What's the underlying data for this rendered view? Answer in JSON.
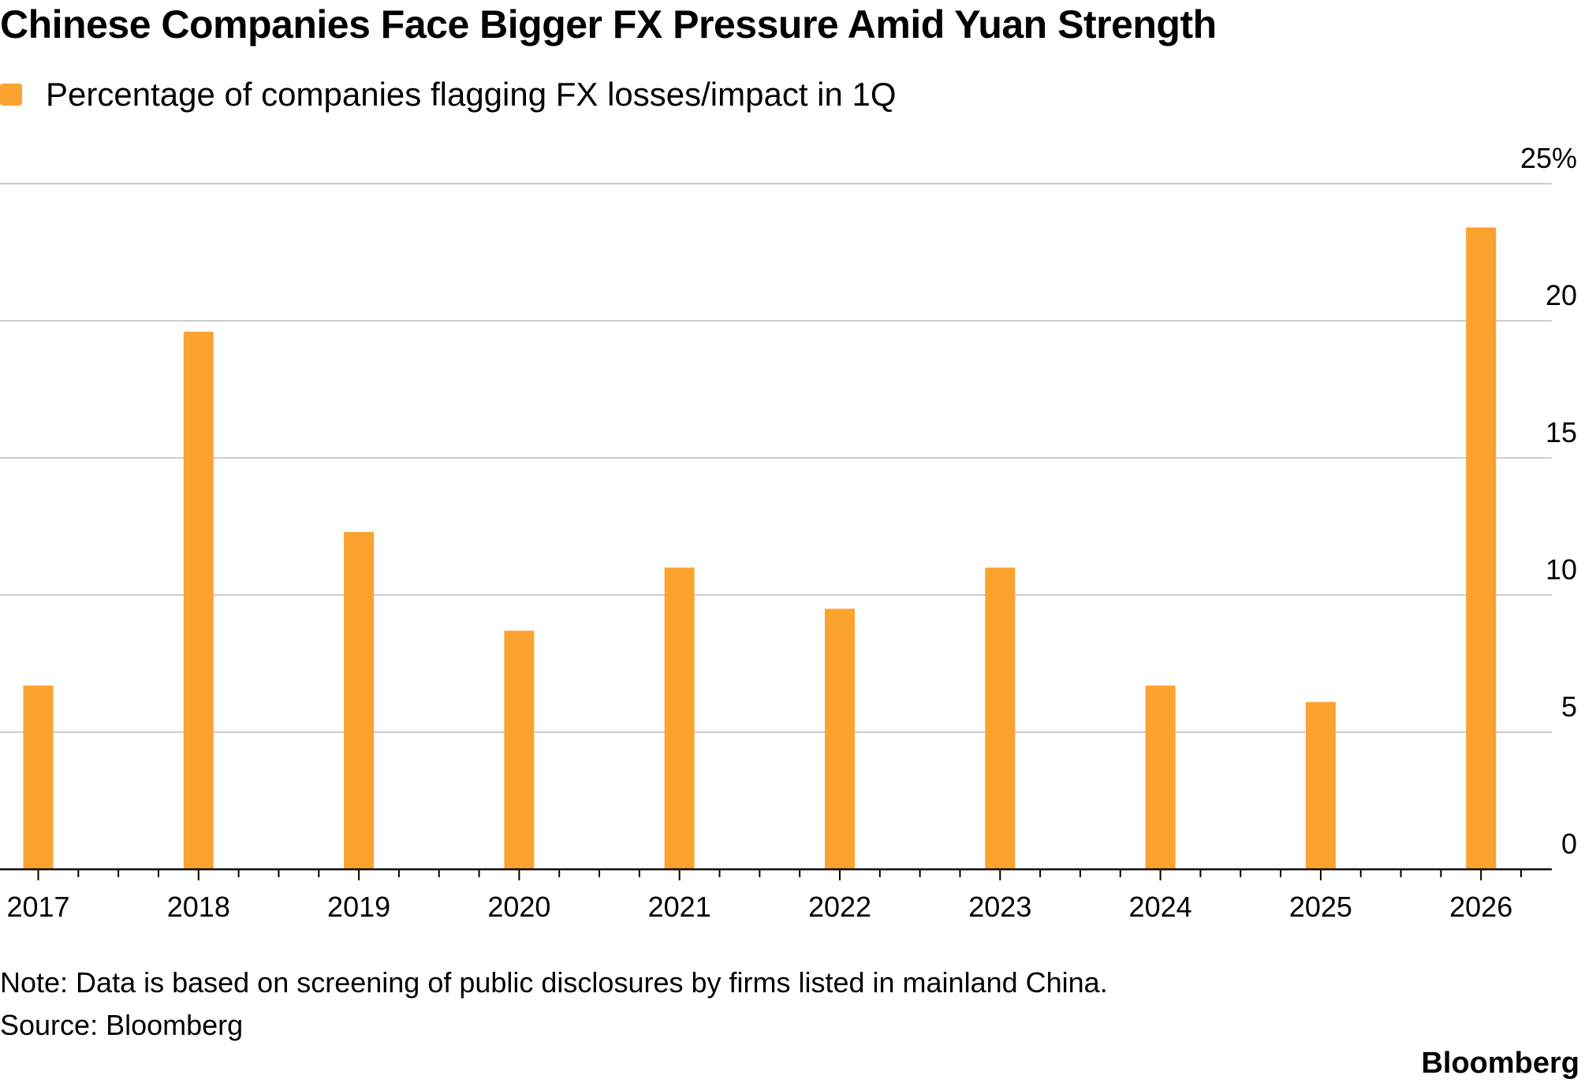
{
  "chart_data": {
    "type": "bar",
    "title": "Chinese Companies Face Bigger FX Pressure Amid Yuan Strength",
    "series": [
      {
        "name": "Percentage of companies flagging FX losses/impact in 1Q",
        "color": "#fca22f",
        "values": [
          6.7,
          19.6,
          12.3,
          8.7,
          11.0,
          9.5,
          11.0,
          6.7,
          6.1,
          23.4
        ]
      }
    ],
    "categories": [
      "2017",
      "2018",
      "2019",
      "2020",
      "2021",
      "2022",
      "2023",
      "2024",
      "2025",
      "2026"
    ],
    "ylim": [
      0,
      25
    ],
    "yticks": [
      0,
      5,
      10,
      15,
      20,
      25
    ],
    "ytick_labels": [
      "0",
      "5",
      "10",
      "15",
      "20",
      "25%"
    ],
    "y_axis_side": "right",
    "grid": true,
    "legend_position": "top-left"
  },
  "footer": {
    "note": "Note: Data is based on screening of public disclosures by firms listed in mainland China.",
    "source": "Source: Bloomberg"
  },
  "brand": "Bloomberg"
}
